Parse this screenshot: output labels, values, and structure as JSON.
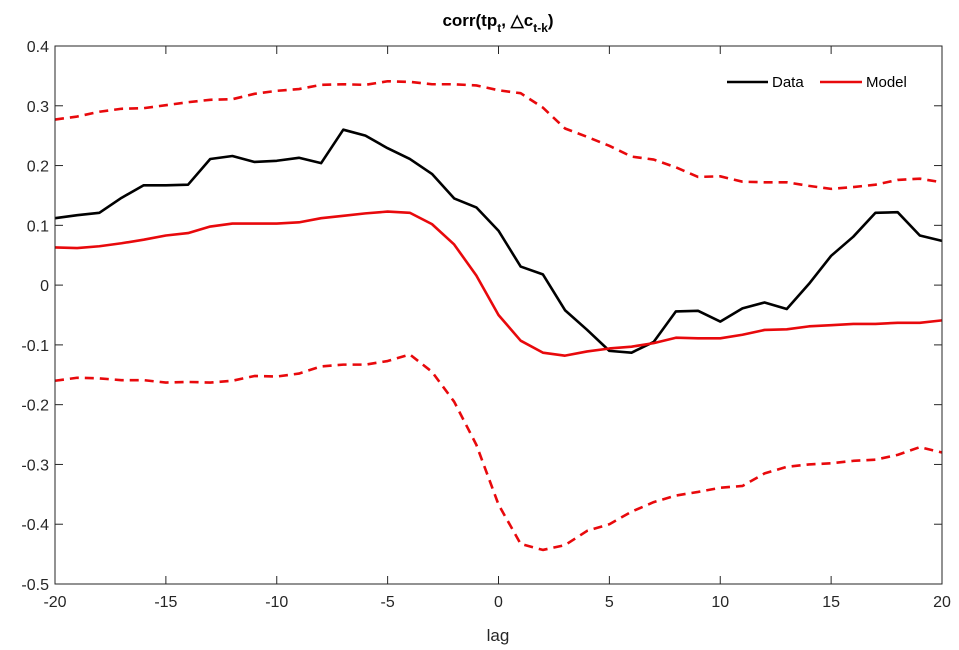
{
  "chart_data": {
    "type": "line",
    "title": {
      "main": "corr(tp",
      "sub1": "t",
      "mid": ", △c",
      "sub2": "t-k",
      "end": ")"
    },
    "xlabel": "lag",
    "ylabel": "",
    "xlim": [
      -20,
      20
    ],
    "ylim": [
      -0.5,
      0.4
    ],
    "xticks": [
      -20,
      -15,
      -10,
      -5,
      0,
      5,
      10,
      15,
      20
    ],
    "yticks": [
      -0.5,
      -0.4,
      -0.3,
      -0.2,
      -0.1,
      0,
      0.1,
      0.2,
      0.3,
      0.4
    ],
    "xtick_labels": [
      "-20",
      "-15",
      "-10",
      "-5",
      "0",
      "5",
      "10",
      "15",
      "20"
    ],
    "ytick_labels": [
      "-0.5",
      "-0.4",
      "-0.3",
      "-0.2",
      "-0.1",
      "0",
      "0.1",
      "0.2",
      "0.3",
      "0.4"
    ],
    "grid": false,
    "legend_position": "top-right",
    "x": [
      -20,
      -19,
      -18,
      -17,
      -16,
      -15,
      -14,
      -13,
      -12,
      -11,
      -10,
      -9,
      -8,
      -7,
      -6,
      -5,
      -4,
      -3,
      -2,
      -1,
      0,
      1,
      2,
      3,
      4,
      5,
      6,
      7,
      8,
      9,
      10,
      11,
      12,
      13,
      14,
      15,
      16,
      17,
      18,
      19,
      20
    ],
    "series": [
      {
        "name": "Data",
        "color": "#000000",
        "style": "solid",
        "legend": true,
        "values": [
          0.112,
          0.117,
          0.121,
          0.146,
          0.167,
          0.167,
          0.168,
          0.211,
          0.216,
          0.206,
          0.208,
          0.213,
          0.204,
          0.26,
          0.25,
          0.229,
          0.211,
          0.186,
          0.145,
          0.13,
          0.091,
          0.031,
          0.018,
          -0.042,
          -0.075,
          -0.11,
          -0.113,
          -0.095,
          -0.044,
          -0.043,
          -0.061,
          -0.039,
          -0.029,
          -0.04,
          0.002,
          0.049,
          0.081,
          0.121,
          0.122,
          0.083,
          0.074
        ]
      },
      {
        "name": "Model",
        "color": "#e8090c",
        "style": "solid",
        "legend": true,
        "values": [
          0.063,
          0.062,
          0.065,
          0.07,
          0.076,
          0.083,
          0.087,
          0.098,
          0.103,
          0.103,
          0.103,
          0.105,
          0.112,
          0.116,
          0.12,
          0.123,
          0.121,
          0.102,
          0.068,
          0.016,
          -0.05,
          -0.093,
          -0.113,
          -0.118,
          -0.111,
          -0.106,
          -0.103,
          -0.097,
          -0.088,
          -0.089,
          -0.089,
          -0.083,
          -0.075,
          -0.074,
          -0.069,
          -0.067,
          -0.065,
          -0.065,
          -0.063,
          -0.063,
          -0.059
        ]
      },
      {
        "color": "#e8090c",
        "style": "dashed",
        "legend": false,
        "values": [
          0.277,
          0.282,
          0.29,
          0.295,
          0.296,
          0.301,
          0.306,
          0.31,
          0.311,
          0.32,
          0.325,
          0.328,
          0.335,
          0.336,
          0.335,
          0.341,
          0.34,
          0.336,
          0.336,
          0.334,
          0.326,
          0.321,
          0.297,
          0.262,
          0.248,
          0.233,
          0.215,
          0.21,
          0.197,
          0.181,
          0.182,
          0.173,
          0.172,
          0.172,
          0.166,
          0.161,
          0.164,
          0.168,
          0.176,
          0.178,
          0.172
        ]
      },
      {
        "color": "#e8090c",
        "style": "dashed",
        "legend": false,
        "values": [
          -0.16,
          -0.155,
          -0.156,
          -0.159,
          -0.159,
          -0.163,
          -0.162,
          -0.163,
          -0.16,
          -0.152,
          -0.153,
          -0.148,
          -0.136,
          -0.133,
          -0.133,
          -0.127,
          -0.116,
          -0.145,
          -0.195,
          -0.267,
          -0.367,
          -0.433,
          -0.443,
          -0.435,
          -0.411,
          -0.4,
          -0.379,
          -0.363,
          -0.352,
          -0.346,
          -0.339,
          -0.336,
          -0.315,
          -0.304,
          -0.3,
          -0.298,
          -0.294,
          -0.292,
          -0.284,
          -0.271,
          -0.28
        ]
      }
    ]
  }
}
